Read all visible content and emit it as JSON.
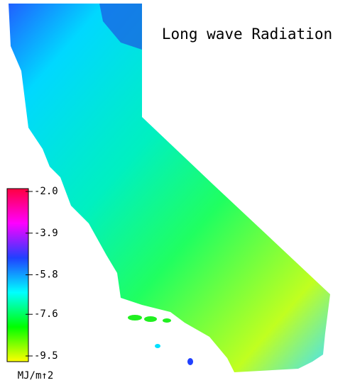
{
  "title": "Long wave Radiation",
  "colorbar": {
    "label": "MJ/m↑2",
    "lim": [
      -9.5,
      -2
    ],
    "ticks": [
      {
        "value": -2,
        "label": "-2.0"
      },
      -3.9,
      -5.8,
      -7.6,
      -9.5
    ],
    "colors": [
      "#ffff00",
      "#00ff00",
      "#00ffff",
      "#2040ff",
      "#ff00ff",
      "#ff0040"
    ]
  }
}
